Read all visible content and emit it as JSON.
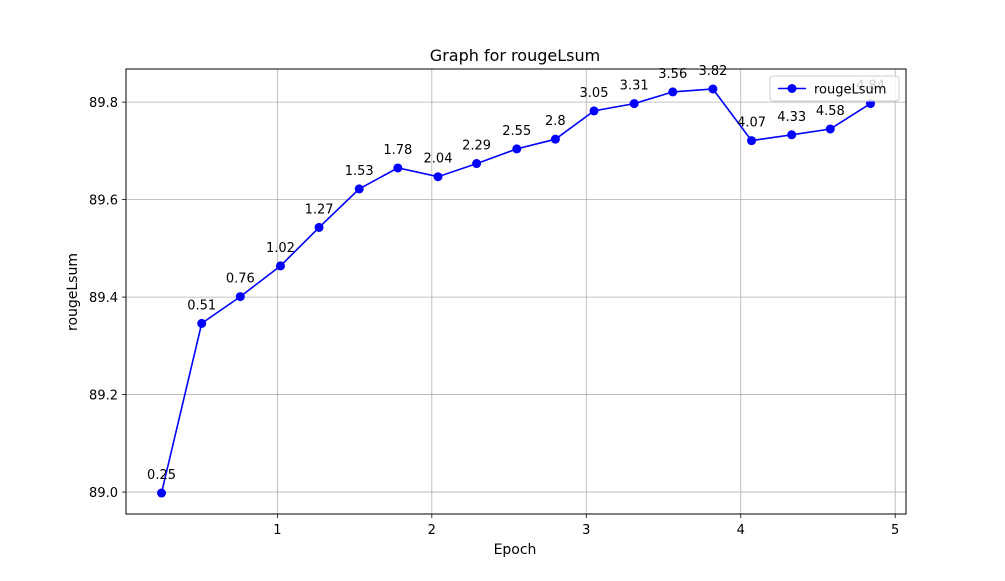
{
  "chart_data": {
    "type": "line",
    "title": "Graph for rougeLsum",
    "xlabel": "Epoch",
    "ylabel": "rougeLsum",
    "xlim": [
      0.02,
      5.07
    ],
    "ylim": [
      88.955,
      89.868
    ],
    "xticks": [
      1,
      2,
      3,
      4,
      5
    ],
    "yticks": [
      89.0,
      89.2,
      89.4,
      89.6,
      89.8
    ],
    "ytick_labels": [
      "89.0",
      "89.2",
      "89.4",
      "89.6",
      "89.8"
    ],
    "grid": true,
    "legend_position": "top-right",
    "series": [
      {
        "name": "rougeLsum",
        "color": "#0000ff",
        "marker": "circle",
        "x": [
          0.25,
          0.51,
          0.76,
          1.02,
          1.27,
          1.53,
          1.78,
          2.04,
          2.29,
          2.55,
          2.8,
          3.05,
          3.31,
          3.56,
          3.82,
          4.07,
          4.33,
          4.58,
          4.84
        ],
        "y": [
          88.998,
          89.346,
          89.401,
          89.464,
          89.543,
          89.622,
          89.665,
          89.647,
          89.674,
          89.704,
          89.724,
          89.782,
          89.797,
          89.821,
          89.827,
          89.721,
          89.733,
          89.745,
          89.797
        ],
        "point_labels": [
          "0.25",
          "0.51",
          "0.76",
          "1.02",
          "1.27",
          "1.53",
          "1.78",
          "2.04",
          "2.29",
          "2.55",
          "2.8",
          "3.05",
          "3.31",
          "3.56",
          "3.82",
          "4.07",
          "4.33",
          "4.58",
          "4.84"
        ]
      }
    ]
  }
}
